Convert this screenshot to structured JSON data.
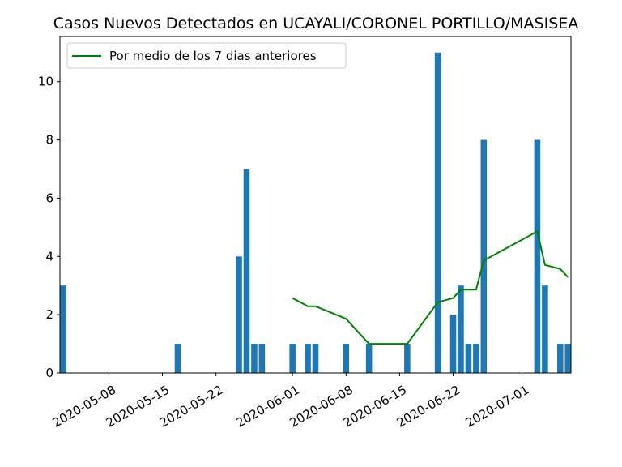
{
  "chart_data": {
    "type": "bar",
    "title": "Casos Nuevos Detectados en UCAYALI/CORONEL PORTILLO/MASISEA",
    "xlabel": "",
    "ylabel": "",
    "xlim": [
      "2020-05-02",
      "2020-07-07"
    ],
    "ylim": [
      0,
      11.55
    ],
    "y_ticks": [
      0,
      2,
      4,
      6,
      8,
      10
    ],
    "x_ticks": [
      "2020-05-08",
      "2020-05-15",
      "2020-05-22",
      "2020-06-01",
      "2020-06-08",
      "2020-06-15",
      "2020-06-22",
      "2020-07-01"
    ],
    "legend_position": "top-left",
    "grid": false,
    "series": [
      {
        "kind": "bar",
        "color": "#1f77b4",
        "points": [
          {
            "x": "2020-05-02",
            "y": 3
          },
          {
            "x": "2020-05-17",
            "y": 1
          },
          {
            "x": "2020-05-25",
            "y": 4
          },
          {
            "x": "2020-05-26",
            "y": 7
          },
          {
            "x": "2020-05-27",
            "y": 1
          },
          {
            "x": "2020-05-28",
            "y": 1
          },
          {
            "x": "2020-06-01",
            "y": 1
          },
          {
            "x": "2020-06-03",
            "y": 1
          },
          {
            "x": "2020-06-04",
            "y": 1
          },
          {
            "x": "2020-06-08",
            "y": 1
          },
          {
            "x": "2020-06-11",
            "y": 1
          },
          {
            "x": "2020-06-16",
            "y": 1
          },
          {
            "x": "2020-06-20",
            "y": 11
          },
          {
            "x": "2020-06-22",
            "y": 2
          },
          {
            "x": "2020-06-23",
            "y": 3
          },
          {
            "x": "2020-06-24",
            "y": 1
          },
          {
            "x": "2020-06-25",
            "y": 1
          },
          {
            "x": "2020-06-26",
            "y": 8
          },
          {
            "x": "2020-07-03",
            "y": 8
          },
          {
            "x": "2020-07-04",
            "y": 3
          },
          {
            "x": "2020-07-06",
            "y": 1
          },
          {
            "x": "2020-07-07",
            "y": 1
          }
        ]
      },
      {
        "kind": "line",
        "name": "Por medio de los 7 dias anteriores",
        "color": "#008000",
        "points": [
          {
            "x": "2020-06-01",
            "y": 2.57
          },
          {
            "x": "2020-06-03",
            "y": 2.29
          },
          {
            "x": "2020-06-04",
            "y": 2.29
          },
          {
            "x": "2020-06-08",
            "y": 1.86
          },
          {
            "x": "2020-06-11",
            "y": 1.0
          },
          {
            "x": "2020-06-16",
            "y": 1.0
          },
          {
            "x": "2020-06-20",
            "y": 2.43
          },
          {
            "x": "2020-06-22",
            "y": 2.57
          },
          {
            "x": "2020-06-23",
            "y": 2.86
          },
          {
            "x": "2020-06-24",
            "y": 2.86
          },
          {
            "x": "2020-06-25",
            "y": 2.86
          },
          {
            "x": "2020-06-26",
            "y": 3.86
          },
          {
            "x": "2020-07-03",
            "y": 4.86
          },
          {
            "x": "2020-07-04",
            "y": 3.71
          },
          {
            "x": "2020-07-06",
            "y": 3.57
          },
          {
            "x": "2020-07-07",
            "y": 3.29
          }
        ]
      }
    ]
  }
}
